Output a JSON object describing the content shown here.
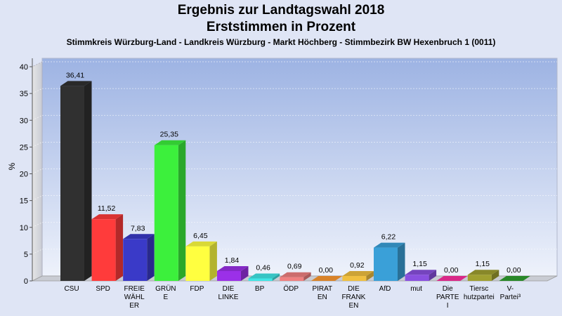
{
  "title": "Ergebnis zur Landtagswahl 2018",
  "subtitle_line2": "Erststimmen in Prozent",
  "subtitle": "Stimmkreis Würzburg-Land - Landkreis Würzburg - Markt Höchberg - Stimmbezirk BW Hexenbruch 1 (0011)",
  "chart_data": {
    "type": "bar",
    "ylabel": "%",
    "xlabel": "",
    "ylim": [
      0,
      40
    ],
    "yticks": [
      0,
      5,
      10,
      15,
      20,
      25,
      30,
      35,
      40
    ],
    "grid": true,
    "categories": [
      "CSU",
      "SPD",
      "FREIE WÄHLER",
      "GRÜNE",
      "FDP",
      "DIE LINKE",
      "BP",
      "ÖDP",
      "PIRATEN",
      "DIE FRANKEN",
      "AfD",
      "mut",
      "Die PARTEI",
      "Tierschutzpartei",
      "V-Partei³"
    ],
    "category_label_lines": [
      [
        "CSU"
      ],
      [
        "SPD"
      ],
      [
        "FREIE",
        "WÄHL",
        "ER"
      ],
      [
        "GRÜN",
        "E"
      ],
      [
        "FDP"
      ],
      [
        "DIE",
        "LINKE"
      ],
      [
        "BP"
      ],
      [
        "ÖDP"
      ],
      [
        "PIRAT",
        "EN"
      ],
      [
        "DIE",
        "FRANK",
        "EN"
      ],
      [
        "AfD"
      ],
      [
        "mut"
      ],
      [
        "Die",
        "PARTE",
        "I"
      ],
      [
        "Tiersc",
        "hutzpartei"
      ],
      [
        "V-",
        "Partei³"
      ]
    ],
    "values": [
      36.41,
      11.52,
      7.83,
      25.35,
      6.45,
      1.84,
      0.46,
      0.69,
      0.0,
      0.92,
      6.22,
      1.15,
      0.0,
      1.15,
      0.0
    ],
    "value_labels": [
      "36,41",
      "11,52",
      "7,83",
      "25,35",
      "6,45",
      "1,84",
      "0,46",
      "0,69",
      "0,00",
      "0,92",
      "6,22",
      "1,15",
      "0,00",
      "1,15",
      "0,00"
    ],
    "colors": [
      "#303030",
      "#ff3b3b",
      "#3a3ac8",
      "#3cf03c",
      "#ffff40",
      "#9b30e8",
      "#40e6e6",
      "#f08080",
      "#ff9a30",
      "#f0c040",
      "#3aa0d8",
      "#8a50e0",
      "#ff30a0",
      "#a0a030",
      "#30a030"
    ]
  }
}
